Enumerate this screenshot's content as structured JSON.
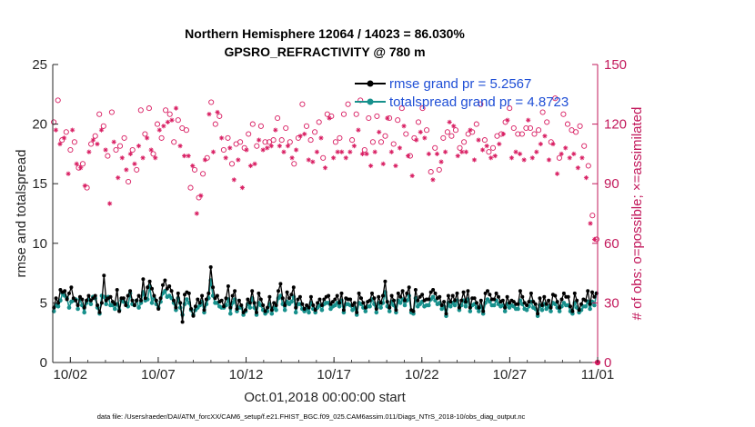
{
  "chart_data": {
    "type": "line",
    "title_line1": "Northern Hemisphere 12064 / 14023 = 86.030%",
    "title_line2": "GPSRO_REFRACTIVITY @ 780 m",
    "ylabel_left": "rmse and totalspread",
    "ylabel_right": "# of obs: o=possible; ×=assimilated",
    "xlabel": "Oct.01,2018 00:00:00 start",
    "footnote": "data file: /Users/raeder/DAI/ATM_forcXX/CAM6_setup/f.e21.FHIST_BGC.f09_025.CAM6assim.011/Diags_NTrS_2018-10/obs_diag_output.nc",
    "ylim_left": [
      0,
      25
    ],
    "ylim_right": [
      0,
      150
    ],
    "xlim_days": [
      0,
      31
    ],
    "yticks_left": [
      "0",
      "5",
      "10",
      "15",
      "20",
      "25"
    ],
    "yticks_right": [
      "0",
      "30",
      "60",
      "90",
      "120",
      "150"
    ],
    "xticks": [
      {
        "day": 1,
        "label": "10/02"
      },
      {
        "day": 6,
        "label": "10/07"
      },
      {
        "day": 11,
        "label": "10/12"
      },
      {
        "day": 16,
        "label": "10/17"
      },
      {
        "day": 21,
        "label": "10/22"
      },
      {
        "day": 26,
        "label": "10/27"
      },
      {
        "day": 31,
        "label": "11/01"
      }
    ],
    "legend": [
      {
        "label": "rmse grand pr = 5.2567",
        "color": "#000000"
      },
      {
        "label": "totalspread grand pr = 4.8723",
        "color": "#17908c"
      }
    ],
    "colors": {
      "rmse": "#000000",
      "spread": "#17908c",
      "obs": "#d81b60",
      "axis_right": "#c2185b"
    },
    "series": [
      {
        "name": "rmse",
        "values": [
          4.6,
          5.4,
          5.0,
          6.1,
          5.9,
          6.0,
          5.3,
          5.8,
          6.3,
          5.4,
          5.2,
          4.8,
          5.5,
          5.3,
          4.6,
          5.2,
          5.6,
          5.2,
          5.4,
          5.6,
          4.8,
          4.2,
          5.0,
          7.3,
          5.2,
          5.4,
          5.5,
          5.1,
          4.9,
          6.1,
          4.3,
          5.4,
          5.4,
          4.8,
          5.6,
          6.0,
          5.2,
          4.8,
          5.2,
          5.6,
          5.2,
          7.0,
          5.4,
          6.3,
          6.8,
          6.2,
          5.6,
          5.2,
          4.5,
          5.4,
          6.5,
          6.9,
          6.2,
          6.4,
          6.0,
          5.2,
          4.6,
          5.8,
          5.0,
          3.4,
          5.7,
          5.9,
          5.8,
          4.5,
          3.9,
          4.7,
          5.3,
          5.0,
          5.6,
          4.4,
          5.3,
          5.8,
          8.0,
          6.3,
          5.4,
          5.6,
          5.1,
          5.2,
          4.7,
          5.4,
          6.4,
          4.6,
          5.6,
          6.0,
          4.5,
          5.2,
          4.8,
          4.2,
          4.4,
          5.3,
          5.0,
          6.0,
          5.0,
          4.2,
          5.8,
          5.3,
          4.8,
          4.3,
          4.6,
          5.5,
          4.4,
          5.0,
          4.8,
          6.0,
          6.6,
          5.4,
          4.8,
          5.9,
          5.4,
          5.7,
          6.3,
          4.6,
          5.3,
          5.5,
          4.9,
          4.5,
          4.8,
          4.6,
          5.5,
          4.8,
          4.4,
          5.0,
          5.3,
          4.8,
          5.3,
          5.5,
          5.6,
          4.9,
          5.1,
          5.3,
          5.6,
          5.0,
          5.8,
          4.4,
          5.4,
          5.3,
          5.3,
          4.8,
          5.0,
          4.2,
          5.8,
          5.4,
          5.0,
          4.6,
          5.1,
          5.2,
          5.8,
          5.4,
          4.5,
          5.5,
          5.0,
          5.6,
          6.8,
          5.1,
          4.6,
          5.6,
          5.2,
          4.4,
          5.8,
          5.5,
          6.0,
          5.2,
          5.8,
          6.3,
          4.4,
          4.3,
          6.1,
          5.2,
          5.5,
          5.7,
          5.2,
          5.3,
          5.3,
          5.9,
          6.1,
          5.8,
          5.4,
          5.5,
          4.8,
          5.1,
          4.1,
          5.6,
          5.1,
          5.6,
          5.2,
          5.8,
          4.6,
          5.2,
          5.9,
          5.1,
          6.0,
          4.6,
          5.4,
          5.4,
          5.0,
          4.6,
          5.2,
          4.3,
          5.8,
          6.0,
          5.7,
          5.3,
          5.3,
          5.8,
          5.5,
          5.1,
          5.2,
          4.6,
          5.5,
          5.0,
          5.2,
          5.1,
          4.9,
          4.9,
          6.0,
          5.5,
          5.0,
          4.8,
          5.1,
          5.8,
          5.1,
          4.9,
          4.1,
          5.4,
          4.8,
          5.5,
          4.9,
          5.2,
          4.6,
          5.7,
          5.6,
          5.1,
          4.6,
          5.3,
          5.8,
          5.5,
          5.5,
          4.7,
          4.3,
          5.8,
          5.2,
          4.4,
          4.9,
          5.3,
          5.2,
          6.0,
          4.9,
          5.9,
          5.5,
          5.8
        ]
      },
      {
        "name": "totalspread",
        "values": [
          4.3,
          4.8,
          4.7,
          5.2,
          5.8,
          5.6,
          5.4,
          4.6,
          5.1,
          5.2,
          5.3,
          4.5,
          5.3,
          4.8,
          4.2,
          5.0,
          5.3,
          4.9,
          5.5,
          5.4,
          4.6,
          4.1,
          5.6,
          5.5,
          4.9,
          5.5,
          4.8,
          4.8,
          4.5,
          4.9,
          4.4,
          5.2,
          5.1,
          5.0,
          4.7,
          5.8,
          4.9,
          4.8,
          5.2,
          4.6,
          5.0,
          5.9,
          5.2,
          5.3,
          6.4,
          5.0,
          5.4,
          4.9,
          4.6,
          5.1,
          5.8,
          6.0,
          5.5,
          5.6,
          5.4,
          5.0,
          4.4,
          5.4,
          4.6,
          4.0,
          4.9,
          5.3,
          5.0,
          4.4,
          4.0,
          4.4,
          4.6,
          4.8,
          5.1,
          4.2,
          4.9,
          5.4,
          6.9,
          5.6,
          5.0,
          5.0,
          4.7,
          4.6,
          4.6,
          4.8,
          5.3,
          4.1,
          5.0,
          5.3,
          4.3,
          4.6,
          4.6,
          4.0,
          4.3,
          4.9,
          4.6,
          5.4,
          4.6,
          4.0,
          5.0,
          4.8,
          4.4,
          4.1,
          4.3,
          4.9,
          4.1,
          4.6,
          4.4,
          5.4,
          5.6,
          4.9,
          4.4,
          5.1,
          4.9,
          5.1,
          5.5,
          4.2,
          4.9,
          4.9,
          4.5,
          4.3,
          4.5,
          4.2,
          5.0,
          4.5,
          4.2,
          4.6,
          4.8,
          4.4,
          4.9,
          5.0,
          5.0,
          4.5,
          4.7,
          4.8,
          5.0,
          4.7,
          5.2,
          4.2,
          4.9,
          4.9,
          4.8,
          4.4,
          4.6,
          4.0,
          5.0,
          4.9,
          4.6,
          4.3,
          4.7,
          4.7,
          5.3,
          4.9,
          4.2,
          5.0,
          4.6,
          5.0,
          5.9,
          4.7,
          4.3,
          5.1,
          4.8,
          4.2,
          5.2,
          5.0,
          5.3,
          4.8,
          5.2,
          5.6,
          4.2,
          4.1,
          5.4,
          4.7,
          4.9,
          5.1,
          4.7,
          4.8,
          4.8,
          5.3,
          5.5,
          5.2,
          4.9,
          5.0,
          4.5,
          4.7,
          3.9,
          5.0,
          4.7,
          5.0,
          4.8,
          5.2,
          4.4,
          4.8,
          5.2,
          4.7,
          5.3,
          4.3,
          4.8,
          4.9,
          4.6,
          4.3,
          4.7,
          4.1,
          5.0,
          5.3,
          5.1,
          4.8,
          4.8,
          5.2,
          4.9,
          4.7,
          4.8,
          4.3,
          4.9,
          4.6,
          4.8,
          4.7,
          4.5,
          4.5,
          5.2,
          4.9,
          4.5,
          4.4,
          4.7,
          5.1,
          4.6,
          4.5,
          3.9,
          4.8,
          4.4,
          4.9,
          4.5,
          4.7,
          4.3,
          5.0,
          4.9,
          4.6,
          4.3,
          4.7,
          5.0,
          4.8,
          4.8,
          4.3,
          4.1,
          5.0,
          4.6,
          4.2,
          4.4,
          4.7,
          4.7,
          5.1,
          4.5,
          5.1,
          4.8,
          5.8
        ]
      },
      {
        "name": "possible",
        "values": [
          121,
          128,
          132,
          119,
          112,
          123,
          116,
          103,
          107,
          134,
          111,
          109,
          98,
          106,
          100,
          97,
          88,
          116,
          110,
          122,
          114,
          120,
          125,
          128,
          119,
          117,
          104,
          88,
          126,
          121,
          107,
          101,
          109,
          112,
          113,
          106,
          91,
          114,
          107,
          109,
          97,
          119,
          127,
          112,
          115,
          123,
          128,
          117,
          105,
          113,
          120,
          128,
          113,
          130,
          127,
          132,
          125,
          133,
          111,
          140,
          122,
          119,
          118,
          114,
          117,
          113,
          88,
          108,
          97,
          82,
          83,
          91,
          95,
          111,
          103,
          136,
          131,
          116,
          120,
          138,
          124,
          123,
          107,
          112,
          113,
          118,
          100,
          100,
          110,
          111,
          111,
          96,
          108,
          117,
          115,
          108,
          120,
          109,
          109,
          122,
          119,
          117,
          111,
          118,
          111,
          119,
          112,
          128,
          123,
          119,
          112,
          116,
          118,
          119,
          111,
          112,
          100,
          117,
          113,
          124,
          130,
          125,
          119,
          111,
          112,
          110,
          116,
          115,
          121,
          123,
          103,
          107,
          125,
          135,
          124,
          112,
          111,
          115,
          113,
          115,
          125,
          112,
          130,
          116,
          112,
          119,
          125,
          127,
          132,
          114,
          107,
          114,
          123,
          108,
          111,
          116,
          124,
          126,
          111,
          109,
          114,
          135,
          123,
          115,
          110,
          108,
          122,
          118,
          128,
          130,
          115,
          113,
          104,
          102,
          113,
          122,
          121,
          126,
          128,
          123,
          117,
          114,
          96,
          100,
          108,
          114,
          97,
          110,
          113,
          116,
          116,
          132,
          114,
          130,
          117,
          113,
          108,
          115,
          111,
          116,
          115,
          128,
          116,
          111,
          120,
          122,
          130,
          117,
          112,
          119,
          106,
          112,
          108,
          113,
          114,
          120,
          115,
          126,
          121,
          133,
          128,
          112,
          118,
          116,
          115,
          114,
          115,
          111,
          118,
          133,
          118,
          112,
          115,
          115,
          117,
          120,
          126,
          124,
          121,
          111,
          111,
          120,
          133,
          103,
          103,
          114,
          125,
          118,
          120,
          112,
          117,
          114,
          116,
          107,
          119,
          112,
          109,
          101,
          99,
          76,
          74,
          67,
          62
        ]
      },
      {
        "name": "assimilated",
        "values": [
          112,
          117,
          119,
          110,
          103,
          113,
          106,
          95,
          98,
          117,
          102,
          100,
          90,
          98,
          92,
          89,
          80,
          106,
          101,
          112,
          104,
          110,
          114,
          117,
          109,
          107,
          95,
          80,
          115,
          111,
          98,
          93,
          100,
          103,
          104,
          97,
          83,
          105,
          98,
          100,
          89,
          109,
          117,
          103,
          106,
          113,
          117,
          107,
          96,
          103,
          110,
          117,
          104,
          119,
          116,
          121,
          114,
          122,
          102,
          128,
          112,
          109,
          108,
          104,
          107,
          104,
          81,
          99,
          89,
          75,
          76,
          84,
          87,
          102,
          95,
          125,
          119,
          106,
          110,
          126,
          113,
          113,
          98,
          103,
          104,
          108,
          92,
          92,
          101,
          102,
          102,
          88,
          99,
          107,
          106,
          99,
          110,
          100,
          100,
          112,
          109,
          107,
          102,
          108,
          102,
          109,
          103,
          117,
          113,
          109,
          103,
          106,
          108,
          109,
          102,
          103,
          92,
          107,
          104,
          114,
          119,
          115,
          109,
          102,
          103,
          101,
          106,
          106,
          111,
          113,
          95,
          98,
          115,
          123,
          114,
          103,
          102,
          106,
          104,
          106,
          115,
          103,
          119,
          106,
          103,
          109,
          115,
          117,
          121,
          105,
          98,
          105,
          113,
          99,
          102,
          106,
          114,
          116,
          102,
          100,
          105,
          123,
          113,
          106,
          101,
          99,
          112,
          108,
          117,
          119,
          106,
          104,
          96,
          94,
          104,
          112,
          111,
          116,
          117,
          113,
          107,
          105,
          88,
          92,
          99,
          105,
          89,
          101,
          104,
          106,
          106,
          121,
          105,
          119,
          107,
          104,
          99,
          106,
          102,
          106,
          106,
          117,
          106,
          102,
          110,
          112,
          119,
          107,
          103,
          109,
          97,
          103,
          99,
          104,
          105,
          110,
          106,
          115,
          111,
          122,
          117,
          103,
          108,
          106,
          106,
          105,
          106,
          102,
          108,
          122,
          108,
          103,
          106,
          106,
          107,
          110,
          115,
          114,
          111,
          102,
          102,
          110,
          122,
          95,
          95,
          105,
          115,
          108,
          110,
          103,
          107,
          105,
          106,
          98,
          109,
          103,
          100,
          93,
          91,
          70,
          68,
          62,
          57
        ]
      }
    ]
  }
}
